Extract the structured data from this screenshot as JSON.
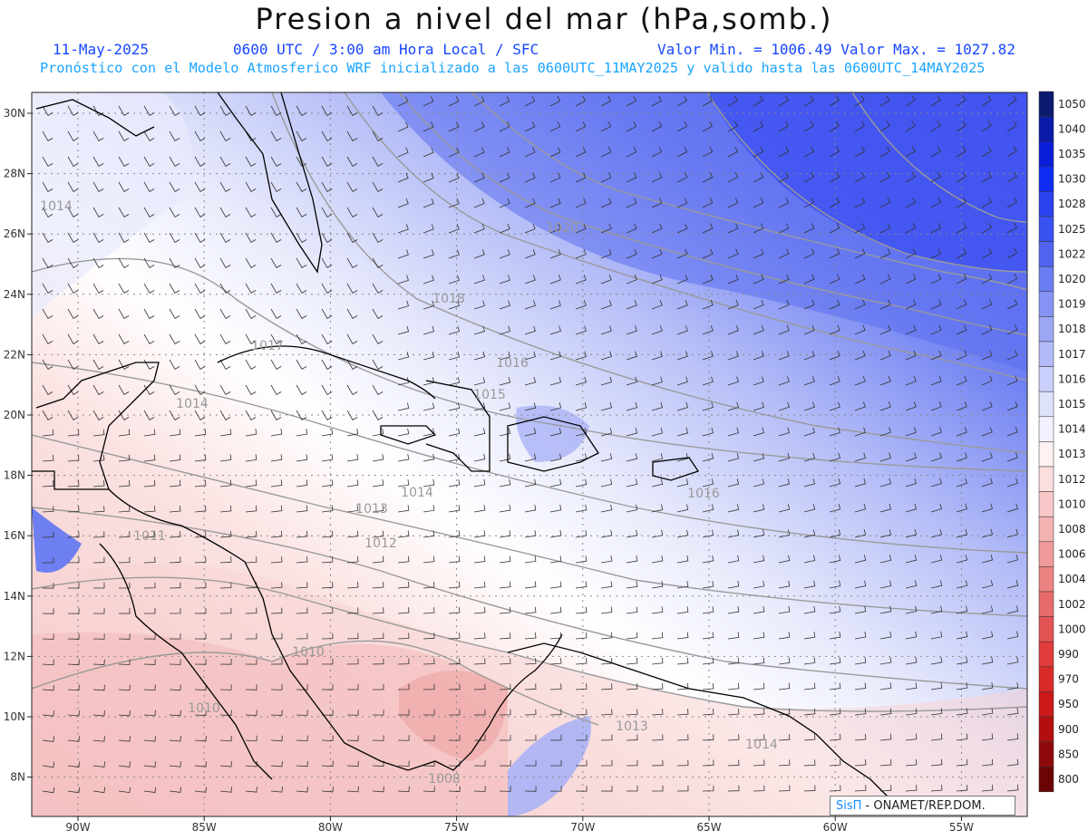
{
  "header": {
    "title": "Presion a nivel del mar (hPa,somb.)",
    "date": "11-May-2025",
    "time": "0600 UTC / 3:00 am Hora Local / SFC",
    "min_max": "Valor Min. = 1006.49  Valor Max. = 1027.82",
    "forecast": "Pronóstico con el Modelo Atmosferico WRF inicializado a las 0600UTC_11MAY2025 y valido hasta las  0600UTC_14MAY2025"
  },
  "axes": {
    "lat_labels": [
      "30N",
      "28N",
      "26N",
      "24N",
      "22N",
      "20N",
      "18N",
      "16N",
      "14N",
      "12N",
      "10N",
      "8N"
    ],
    "lon_labels": [
      "90W",
      "85W",
      "80W",
      "75W",
      "70W",
      "65W",
      "60W",
      "55W"
    ]
  },
  "isobar_labels": [
    "1014",
    "1020",
    "1018",
    "1017",
    "1016",
    "1015",
    "1014",
    "1014",
    "1013",
    "1012",
    "1011",
    "1010",
    "1010",
    "1008",
    "1013",
    "1014",
    "1016"
  ],
  "colorbar": {
    "levels": [
      "1050",
      "1040",
      "1035",
      "1030",
      "1028",
      "1025",
      "1022",
      "1020",
      "1019",
      "1018",
      "1017",
      "1016",
      "1015",
      "1014",
      "1013",
      "1012",
      "1010",
      "1008",
      "1006",
      "1004",
      "1002",
      "1000",
      "990",
      "970",
      "950",
      "900",
      "850",
      "800"
    ],
    "colors": [
      "#0a1a6e",
      "#0a1ba8",
      "#0b1fd8",
      "#0f2cf5",
      "#2a43f0",
      "#3b52f2",
      "#5064f0",
      "#6b7df2",
      "#8593f4",
      "#9ba7f5",
      "#b2bbf7",
      "#c9cffa",
      "#dfe2fb",
      "#f1f2fd",
      "#fff2f2",
      "#fcdede",
      "#f8c8c8",
      "#f4b2b2",
      "#f09a9a",
      "#ec8383",
      "#e86b6b",
      "#e45353",
      "#e03c3c",
      "#d92a2a",
      "#cc1a1a",
      "#b30f0f",
      "#8f0a0a",
      "#6b0505"
    ]
  },
  "credit": {
    "brand": "SisΠ",
    "text": " - ONAMET/REP.DOM."
  }
}
